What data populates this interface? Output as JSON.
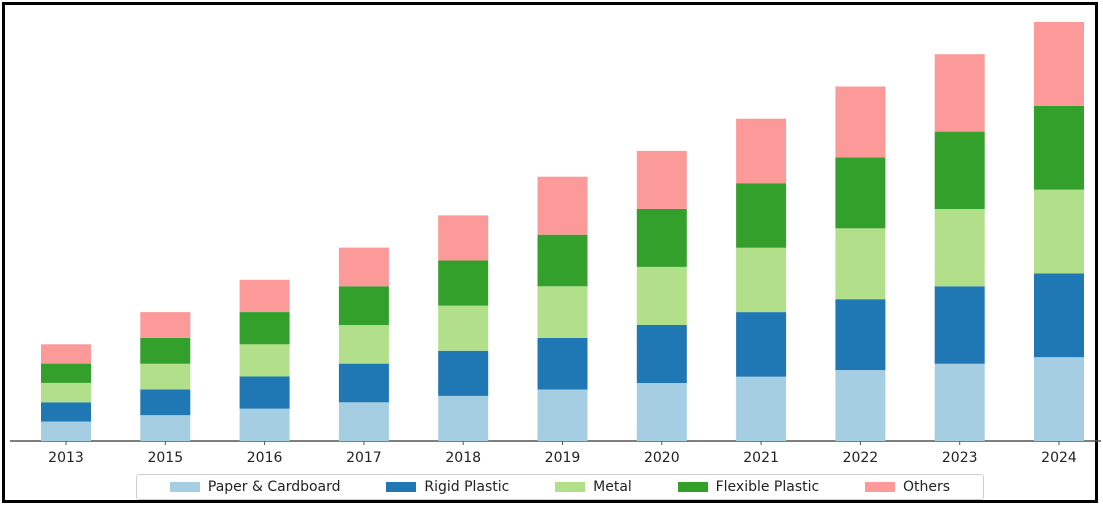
{
  "chart_data": {
    "type": "bar",
    "stacked": true,
    "title": "",
    "xlabel": "",
    "ylabel": "",
    "categories": [
      "2013",
      "2015",
      "2016",
      "2017",
      "2018",
      "2019",
      "2020",
      "2021",
      "2022",
      "2023",
      "2024"
    ],
    "ylim": [
      0,
      130
    ],
    "y_axis_visible": false,
    "grid": false,
    "legend_position": "bottom",
    "series": [
      {
        "name": "Paper & Cardboard",
        "color": "#a6cee3",
        "values": [
          6,
          8,
          10,
          12,
          14,
          16,
          18,
          20,
          22,
          24,
          26
        ]
      },
      {
        "name": "Rigid Plastic",
        "color": "#1f78b4",
        "values": [
          6,
          8,
          10,
          12,
          14,
          16,
          18,
          20,
          22,
          24,
          26
        ]
      },
      {
        "name": "Metal",
        "color": "#b2df8a",
        "values": [
          6,
          8,
          10,
          12,
          14,
          16,
          18,
          20,
          22,
          24,
          26
        ]
      },
      {
        "name": "Flexible Plastic",
        "color": "#33a02c",
        "values": [
          6,
          8,
          10,
          12,
          14,
          16,
          18,
          20,
          22,
          24,
          26
        ]
      },
      {
        "name": "Others",
        "color": "#fb9a99",
        "values": [
          6,
          8,
          10,
          12,
          14,
          18,
          18,
          20,
          22,
          24,
          26
        ]
      }
    ]
  }
}
